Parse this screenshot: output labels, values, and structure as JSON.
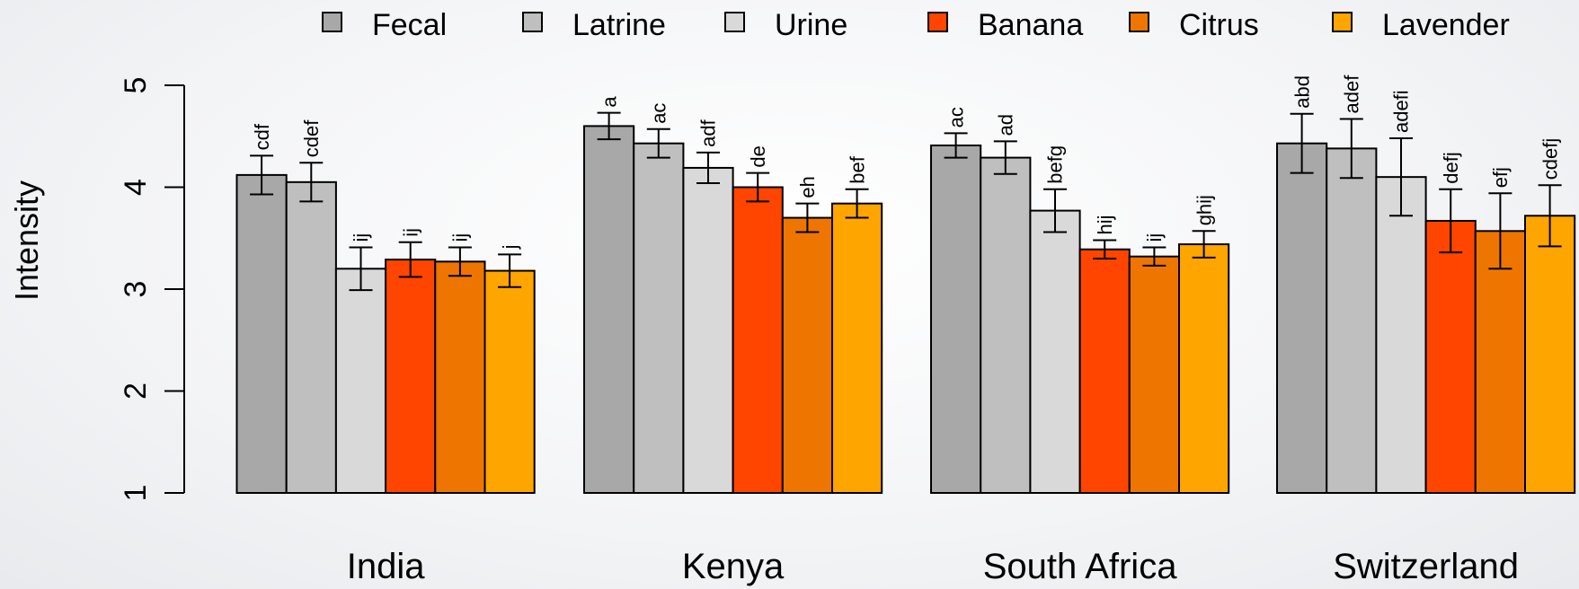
{
  "chart_data": {
    "type": "bar",
    "ylabel": "Intensity",
    "ylim": [
      1,
      5
    ],
    "yticks": [
      1,
      2,
      3,
      4,
      5
    ],
    "categories": [
      "India",
      "Kenya",
      "South Africa",
      "Switzerland"
    ],
    "legend_position": "top",
    "series": [
      {
        "name": "Fecal",
        "color": "#a8a8a8",
        "values": [
          4.12,
          4.6,
          4.41,
          4.43
        ],
        "errors": [
          0.19,
          0.13,
          0.12,
          0.29
        ],
        "labels": [
          "cdf",
          "a",
          "ac",
          "abd"
        ]
      },
      {
        "name": "Latrine",
        "color": "#bfbfbf",
        "values": [
          4.05,
          4.43,
          4.29,
          4.38
        ],
        "errors": [
          0.19,
          0.14,
          0.16,
          0.29
        ],
        "labels": [
          "cdef",
          "ac",
          "ad",
          "adef"
        ]
      },
      {
        "name": "Urine",
        "color": "#d9d9d9",
        "values": [
          3.2,
          4.19,
          3.77,
          4.1
        ],
        "errors": [
          0.21,
          0.15,
          0.21,
          0.38
        ],
        "labels": [
          "ij",
          "adf",
          "befg",
          "adefi"
        ]
      },
      {
        "name": "Banana",
        "color": "#ff4500",
        "values": [
          3.29,
          4.0,
          3.39,
          3.67
        ],
        "errors": [
          0.17,
          0.14,
          0.09,
          0.31
        ],
        "labels": [
          "ij",
          "de",
          "hij",
          "defj"
        ]
      },
      {
        "name": "Citrus",
        "color": "#ee7600",
        "values": [
          3.27,
          3.7,
          3.32,
          3.57
        ],
        "errors": [
          0.14,
          0.14,
          0.09,
          0.37
        ],
        "labels": [
          "ij",
          "eh",
          "ij",
          "efj"
        ]
      },
      {
        "name": "Lavender",
        "color": "#ffa500",
        "values": [
          3.18,
          3.84,
          3.44,
          3.72
        ],
        "errors": [
          0.16,
          0.14,
          0.13,
          0.3
        ],
        "labels": [
          "j",
          "bef",
          "ghij",
          "cdefj"
        ]
      }
    ]
  }
}
